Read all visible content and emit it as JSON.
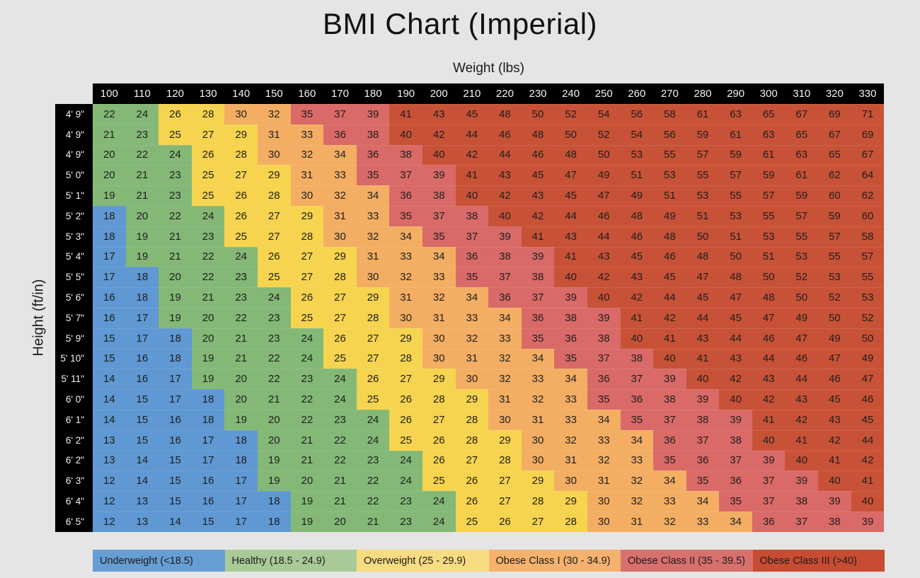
{
  "title": "BMI Chart (Imperial)",
  "x_axis_label": "Weight (lbs)",
  "y_axis_label": "Height (ft/in)",
  "colors": {
    "background": "#e5e5e5",
    "axis_bar": "#000000",
    "axis_text": "#f2f2f2",
    "cell_text": "#1e1e1e",
    "title_text": "#111111"
  },
  "chart_data": {
    "type": "heatmap",
    "title": "BMI Chart (Imperial)",
    "xlabel": "Weight (lbs)",
    "ylabel": "Height (ft/in)",
    "legend_position": "bottom",
    "weights_lbs": [
      100,
      110,
      120,
      130,
      140,
      150,
      160,
      170,
      180,
      190,
      200,
      210,
      220,
      230,
      240,
      250,
      260,
      270,
      280,
      290,
      300,
      310,
      320,
      330
    ],
    "height_labels": [
      "4' 9\"",
      "4' 9\"",
      "4' 9\"",
      "5' 0\"",
      "5' 1\"",
      "5' 2\"",
      "5' 3\"",
      "5' 4\"",
      "5' 5\"",
      "5' 6\"",
      "5' 7\"",
      "5' 9\"",
      "5' 10\"",
      "5' 11\"",
      "6' 0\"",
      "6' 1\"",
      "6' 2\"",
      "6' 2\"",
      "6' 3\"",
      "6' 4\"",
      "6' 5\""
    ],
    "bmi_matrix": [
      [
        22,
        24,
        26,
        28,
        30,
        32,
        35,
        37,
        39,
        41,
        43,
        45,
        48,
        50,
        52,
        54,
        56,
        58,
        61,
        63,
        65,
        67,
        69,
        71
      ],
      [
        21,
        23,
        25,
        27,
        29,
        31,
        33,
        36,
        38,
        40,
        42,
        44,
        46,
        48,
        50,
        52,
        54,
        56,
        59,
        61,
        63,
        65,
        67,
        69
      ],
      [
        20,
        22,
        24,
        26,
        28,
        30,
        32,
        34,
        36,
        38,
        40,
        42,
        44,
        46,
        48,
        50,
        53,
        55,
        57,
        59,
        61,
        63,
        65,
        67
      ],
      [
        20,
        21,
        23,
        25,
        27,
        29,
        31,
        33,
        35,
        37,
        39,
        41,
        43,
        45,
        47,
        49,
        51,
        53,
        55,
        57,
        59,
        61,
        62,
        64
      ],
      [
        19,
        21,
        23,
        25,
        26,
        28,
        30,
        32,
        34,
        36,
        38,
        40,
        42,
        43,
        45,
        47,
        49,
        51,
        53,
        55,
        57,
        59,
        60,
        62
      ],
      [
        18,
        20,
        22,
        24,
        26,
        27,
        29,
        31,
        33,
        35,
        37,
        38,
        40,
        42,
        44,
        46,
        48,
        49,
        51,
        53,
        55,
        57,
        59,
        60
      ],
      [
        18,
        19,
        21,
        23,
        25,
        27,
        28,
        30,
        32,
        34,
        35,
        37,
        39,
        41,
        43,
        44,
        46,
        48,
        50,
        51,
        53,
        55,
        57,
        58
      ],
      [
        17,
        19,
        21,
        22,
        24,
        26,
        27,
        29,
        31,
        33,
        34,
        36,
        38,
        39,
        41,
        43,
        45,
        46,
        48,
        50,
        51,
        53,
        55,
        57
      ],
      [
        17,
        18,
        20,
        22,
        23,
        25,
        27,
        28,
        30,
        32,
        33,
        35,
        37,
        38,
        40,
        42,
        43,
        45,
        47,
        48,
        50,
        52,
        53,
        55
      ],
      [
        16,
        18,
        19,
        21,
        23,
        24,
        26,
        27,
        29,
        31,
        32,
        34,
        36,
        37,
        39,
        40,
        42,
        44,
        45,
        47,
        48,
        50,
        52,
        53
      ],
      [
        16,
        17,
        19,
        20,
        22,
        23,
        25,
        27,
        28,
        30,
        31,
        33,
        34,
        36,
        38,
        39,
        41,
        42,
        44,
        45,
        47,
        49,
        50,
        52
      ],
      [
        15,
        17,
        18,
        20,
        21,
        23,
        24,
        26,
        27,
        29,
        30,
        32,
        33,
        35,
        36,
        38,
        40,
        41,
        43,
        44,
        46,
        47,
        49,
        50
      ],
      [
        15,
        16,
        18,
        19,
        21,
        22,
        24,
        25,
        27,
        28,
        30,
        31,
        32,
        34,
        35,
        37,
        38,
        40,
        41,
        43,
        44,
        46,
        47,
        49
      ],
      [
        14,
        16,
        17,
        19,
        20,
        22,
        23,
        24,
        26,
        27,
        29,
        30,
        32,
        33,
        34,
        36,
        37,
        39,
        40,
        42,
        43,
        44,
        46,
        47
      ],
      [
        14,
        15,
        17,
        18,
        20,
        21,
        22,
        24,
        25,
        26,
        28,
        29,
        31,
        32,
        33,
        35,
        36,
        38,
        39,
        40,
        42,
        43,
        45,
        46
      ],
      [
        14,
        15,
        16,
        18,
        19,
        20,
        22,
        23,
        24,
        26,
        27,
        28,
        30,
        31,
        33,
        34,
        35,
        37,
        38,
        39,
        41,
        42,
        43,
        45
      ],
      [
        13,
        15,
        16,
        17,
        18,
        20,
        21,
        22,
        24,
        25,
        26,
        28,
        29,
        30,
        32,
        33,
        34,
        36,
        37,
        38,
        40,
        41,
        42,
        44
      ],
      [
        13,
        14,
        15,
        17,
        18,
        19,
        21,
        22,
        23,
        24,
        26,
        27,
        28,
        30,
        31,
        32,
        33,
        35,
        36,
        37,
        39,
        40,
        41,
        42
      ],
      [
        12,
        14,
        15,
        16,
        17,
        19,
        20,
        21,
        22,
        24,
        25,
        26,
        27,
        29,
        30,
        31,
        32,
        34,
        35,
        36,
        37,
        39,
        40,
        41
      ],
      [
        12,
        13,
        15,
        16,
        17,
        18,
        19,
        21,
        22,
        23,
        24,
        26,
        27,
        28,
        29,
        30,
        32,
        33,
        34,
        35,
        37,
        38,
        39,
        40
      ],
      [
        12,
        13,
        14,
        15,
        17,
        18,
        19,
        20,
        21,
        23,
        24,
        25,
        26,
        27,
        28,
        30,
        31,
        32,
        33,
        34,
        36,
        37,
        38,
        39
      ]
    ],
    "categories": [
      {
        "name": "underweight",
        "label": "Underweight (<18.5)",
        "min_value": 0,
        "max_value": 18,
        "cell_color": "#5f98d3",
        "legend_color": "#669ed4"
      },
      {
        "name": "healthy",
        "label": "Healthy (18.5 - 24.9)",
        "min_value": 19,
        "max_value": 24,
        "cell_color": "#84b877",
        "legend_color": "#a9c996"
      },
      {
        "name": "overweight",
        "label": "Overweight (25 - 29.9)",
        "min_value": 25,
        "max_value": 29,
        "cell_color": "#f6d44f",
        "legend_color": "#f8dc82"
      },
      {
        "name": "obese-1",
        "label": "Obese Class I (30 - 34.9)",
        "min_value": 30,
        "max_value": 34,
        "cell_color": "#f3ae64",
        "legend_color": "#f5b26e"
      },
      {
        "name": "obese-2",
        "label": "Obese Class II (35 - 39.5)",
        "min_value": 35,
        "max_value": 39,
        "cell_color": "#d96a67",
        "legend_color": "#d8706d"
      },
      {
        "name": "obese-3",
        "label": "Obese Class III (>40)",
        "min_value": 40,
        "max_value": 999,
        "cell_color": "#c85237",
        "legend_color": "#c74c31"
      }
    ]
  }
}
